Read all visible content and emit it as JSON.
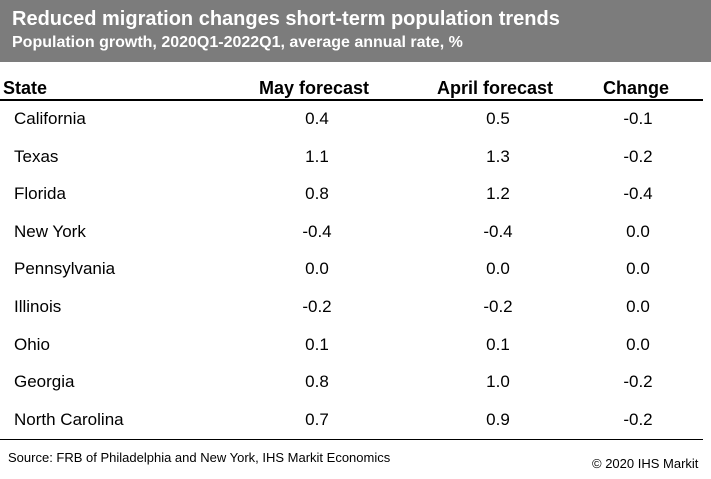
{
  "header": {
    "title": "Reduced migration changes short-term population trends",
    "subtitle": "Population growth, 2020Q1-2022Q1, average annual rate, %"
  },
  "colors": {
    "header_bg": "#7c7c7c",
    "header_text": "#ffffff"
  },
  "chart_data": {
    "type": "table",
    "title": "Reduced migration changes short-term population trends",
    "subtitle": "Population growth, 2020Q1-2022Q1, average annual rate, %",
    "columns": [
      "State",
      "May forecast",
      "April forecast",
      "Change"
    ],
    "rows": [
      [
        "California",
        "0.4",
        "0.5",
        "-0.1"
      ],
      [
        "Texas",
        "1.1",
        "1.3",
        "-0.2"
      ],
      [
        "Florida",
        "0.8",
        "1.2",
        "-0.4"
      ],
      [
        "New York",
        "-0.4",
        "-0.4",
        "0.0"
      ],
      [
        "Pennsylvania",
        "0.0",
        "0.0",
        "0.0"
      ],
      [
        "Illinois",
        "-0.2",
        "-0.2",
        "0.0"
      ],
      [
        "Ohio",
        "0.1",
        "0.1",
        "0.0"
      ],
      [
        "Georgia",
        "0.8",
        "1.0",
        "-0.2"
      ],
      [
        "North Carolina",
        "0.7",
        "0.9",
        "-0.2"
      ]
    ]
  },
  "footer": {
    "source": "Source: FRB of Philadelphia and New York, IHS Markit Economics",
    "copyright": "© 2020 IHS Markit"
  }
}
